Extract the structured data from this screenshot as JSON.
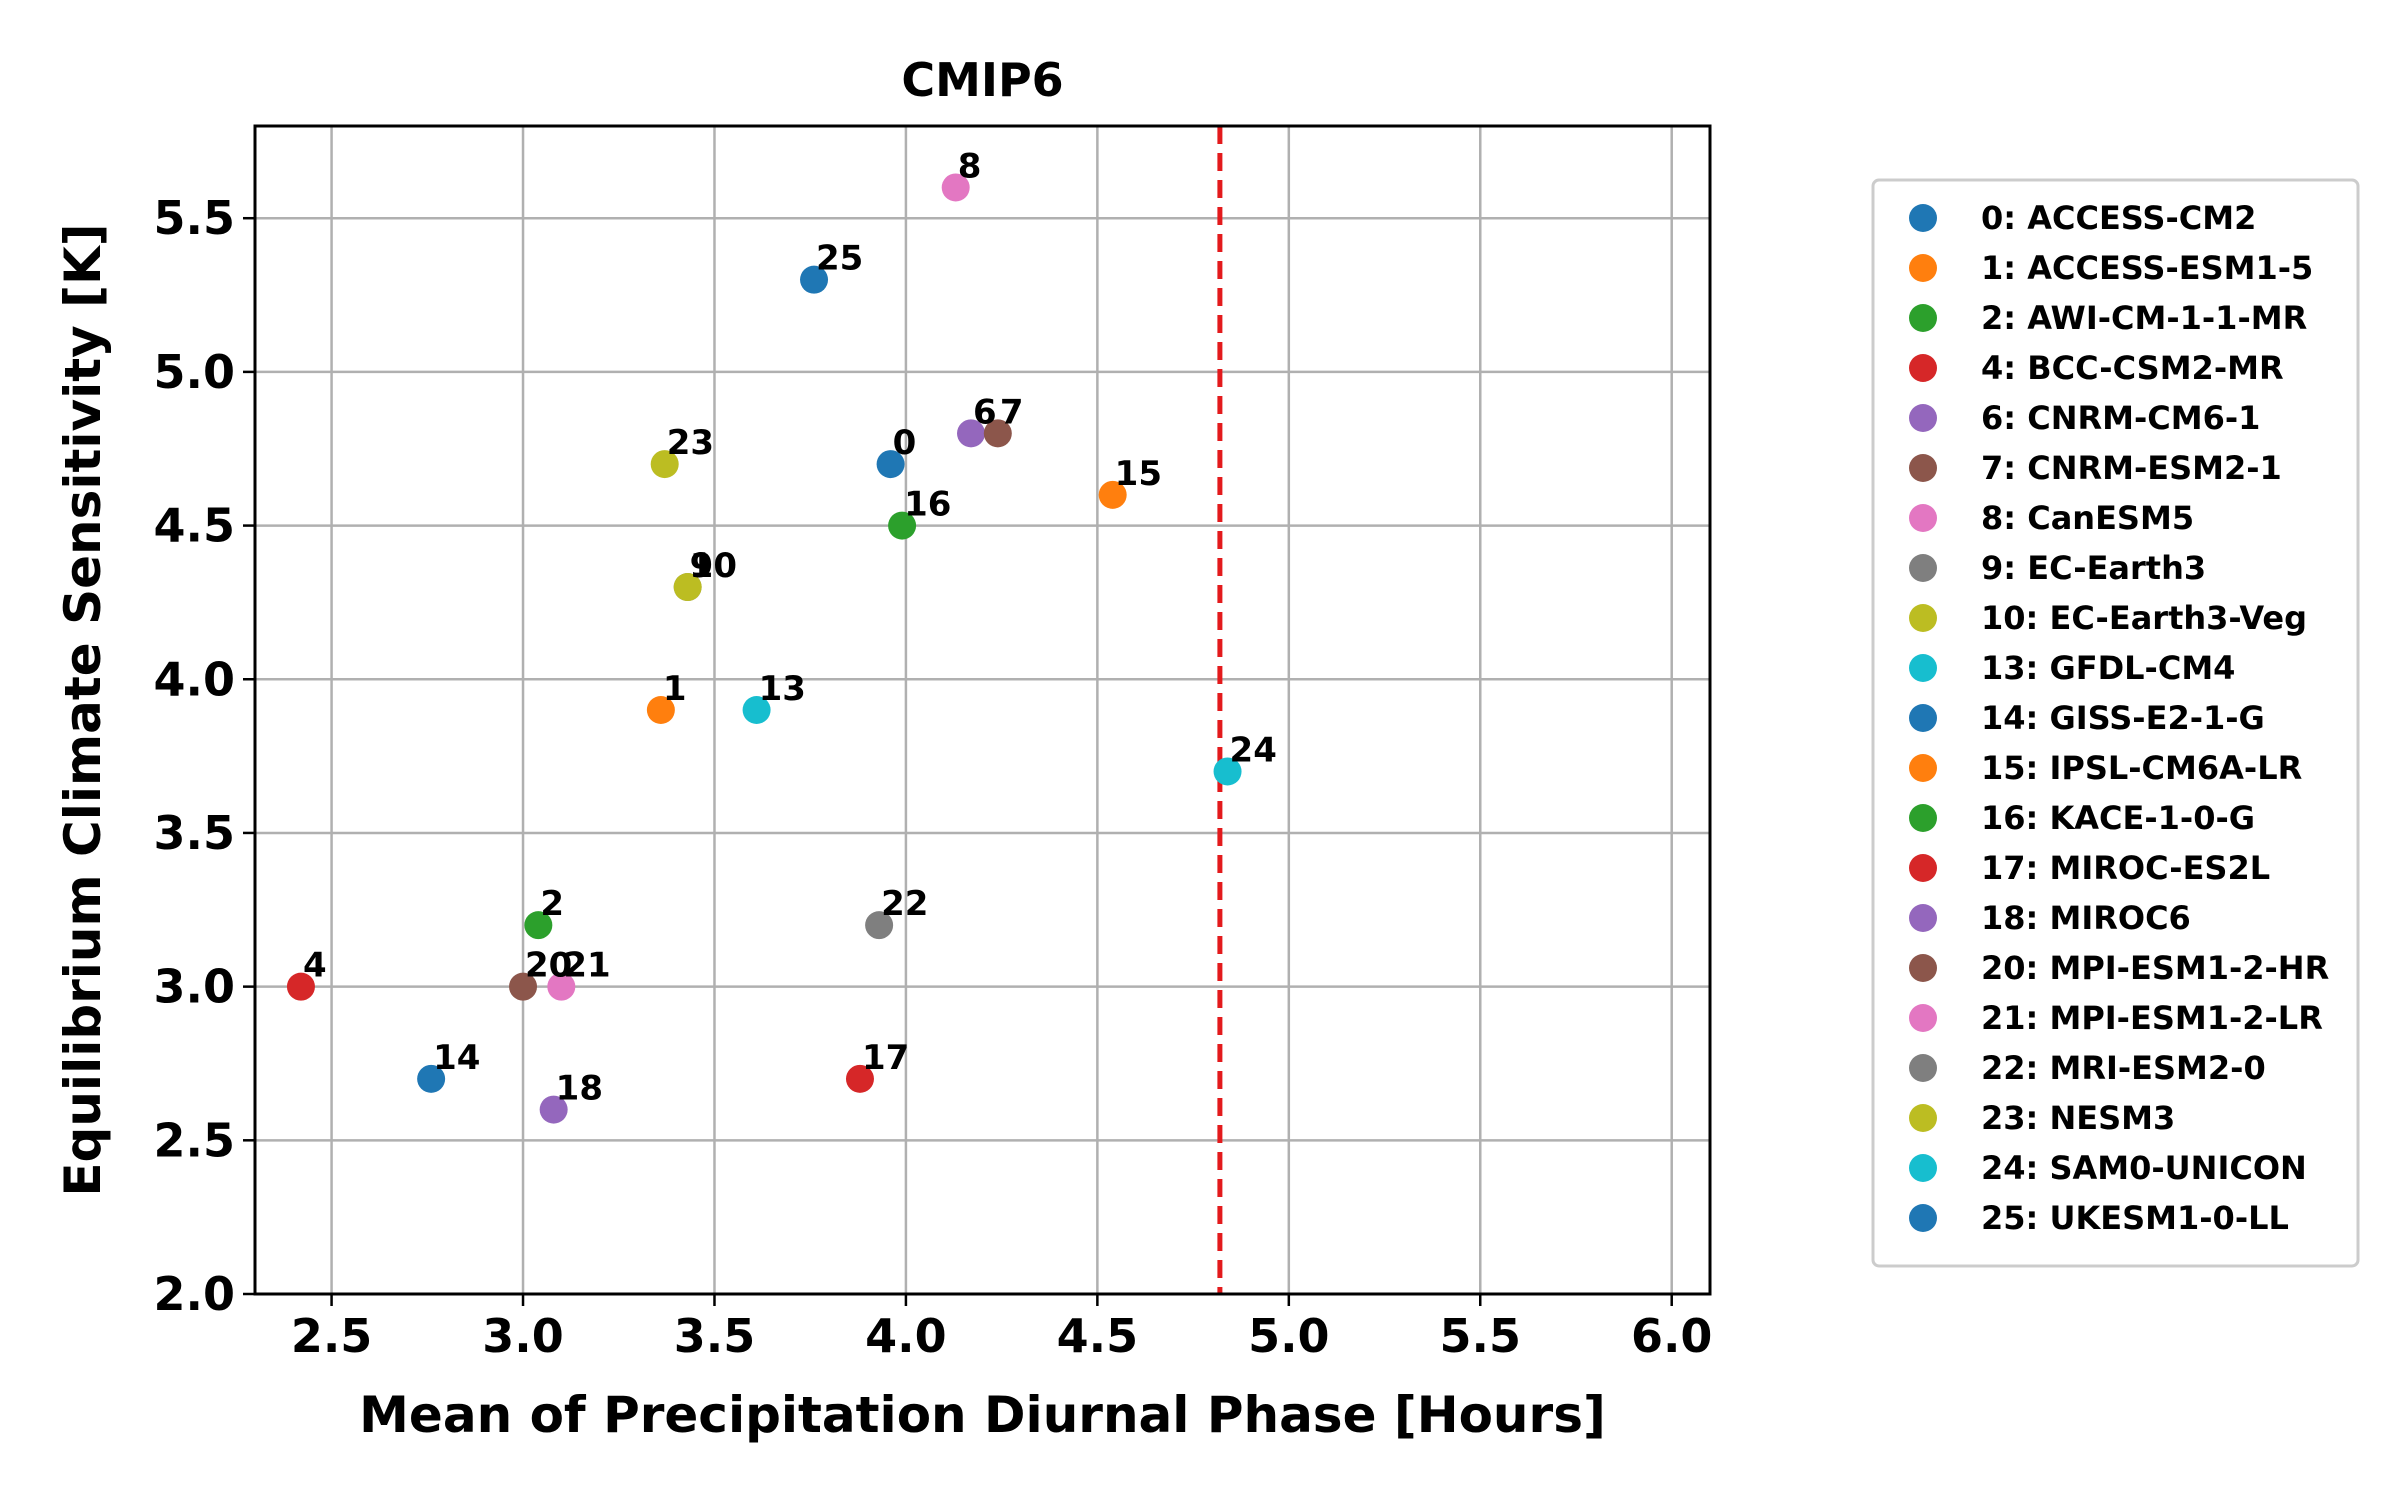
{
  "chart_data": {
    "type": "scatter",
    "title": "CMIP6",
    "xlabel": "Mean of Precipitation Diurnal Phase [Hours]",
    "ylabel": "Equilibrium Climate Sensitivity [K]",
    "xlim": [
      2.3,
      6.1
    ],
    "ylim": [
      2.0,
      5.8
    ],
    "xticks": [
      "2.5",
      "3.0",
      "3.5",
      "4.0",
      "4.5",
      "5.0",
      "5.5",
      "6.0"
    ],
    "yticks": [
      "2.0",
      "2.5",
      "3.0",
      "3.5",
      "4.0",
      "4.5",
      "5.0",
      "5.5"
    ],
    "grid": true,
    "legend_position": "right",
    "reference_line": {
      "orientation": "vertical",
      "x": 4.82,
      "style": "dashed",
      "color": "#e31a1c"
    },
    "points": [
      {
        "id": "0",
        "name": "0: ACCESS-CM2",
        "x": 3.96,
        "y": 4.7,
        "color": "#1f77b4"
      },
      {
        "id": "1",
        "name": "1: ACCESS-ESM1-5",
        "x": 3.36,
        "y": 3.9,
        "color": "#ff7f0e"
      },
      {
        "id": "2",
        "name": "2: AWI-CM-1-1-MR",
        "x": 3.04,
        "y": 3.2,
        "color": "#2ca02c"
      },
      {
        "id": "4",
        "name": "4: BCC-CSM2-MR",
        "x": 2.42,
        "y": 3.0,
        "color": "#d62728"
      },
      {
        "id": "6",
        "name": "6: CNRM-CM6-1",
        "x": 4.17,
        "y": 4.8,
        "color": "#9467bd"
      },
      {
        "id": "7",
        "name": "7: CNRM-ESM2-1",
        "x": 4.24,
        "y": 4.8,
        "color": "#8c564b"
      },
      {
        "id": "8",
        "name": "8: CanESM5",
        "x": 4.13,
        "y": 5.6,
        "color": "#e377c2"
      },
      {
        "id": "9",
        "name": "9: EC-Earth3",
        "x": 3.43,
        "y": 4.3,
        "color": "#7f7f7f"
      },
      {
        "id": "10",
        "name": "10: EC-Earth3-Veg",
        "x": 3.43,
        "y": 4.3,
        "color": "#bcbd22"
      },
      {
        "id": "13",
        "name": "13: GFDL-CM4",
        "x": 3.61,
        "y": 3.9,
        "color": "#17becf"
      },
      {
        "id": "14",
        "name": "14: GISS-E2-1-G",
        "x": 2.76,
        "y": 2.7,
        "color": "#1f77b4"
      },
      {
        "id": "15",
        "name": "15: IPSL-CM6A-LR",
        "x": 4.54,
        "y": 4.6,
        "color": "#ff7f0e"
      },
      {
        "id": "16",
        "name": "16: KACE-1-0-G",
        "x": 3.99,
        "y": 4.5,
        "color": "#2ca02c"
      },
      {
        "id": "17",
        "name": "17: MIROC-ES2L",
        "x": 3.88,
        "y": 2.7,
        "color": "#d62728"
      },
      {
        "id": "18",
        "name": "18: MIROC6",
        "x": 3.08,
        "y": 2.6,
        "color": "#9467bd"
      },
      {
        "id": "20",
        "name": "20: MPI-ESM1-2-HR",
        "x": 3.0,
        "y": 3.0,
        "color": "#8c564b"
      },
      {
        "id": "21",
        "name": "21: MPI-ESM1-2-LR",
        "x": 3.1,
        "y": 3.0,
        "color": "#e377c2"
      },
      {
        "id": "22",
        "name": "22: MRI-ESM2-0",
        "x": 3.93,
        "y": 3.2,
        "color": "#7f7f7f"
      },
      {
        "id": "23",
        "name": "23: NESM3",
        "x": 3.37,
        "y": 4.7,
        "color": "#bcbd22"
      },
      {
        "id": "24",
        "name": "24: SAM0-UNICON",
        "x": 4.84,
        "y": 3.7,
        "color": "#17becf"
      },
      {
        "id": "25",
        "name": "25: UKESM1-0-LL",
        "x": 3.76,
        "y": 5.3,
        "color": "#1f77b4"
      }
    ]
  }
}
